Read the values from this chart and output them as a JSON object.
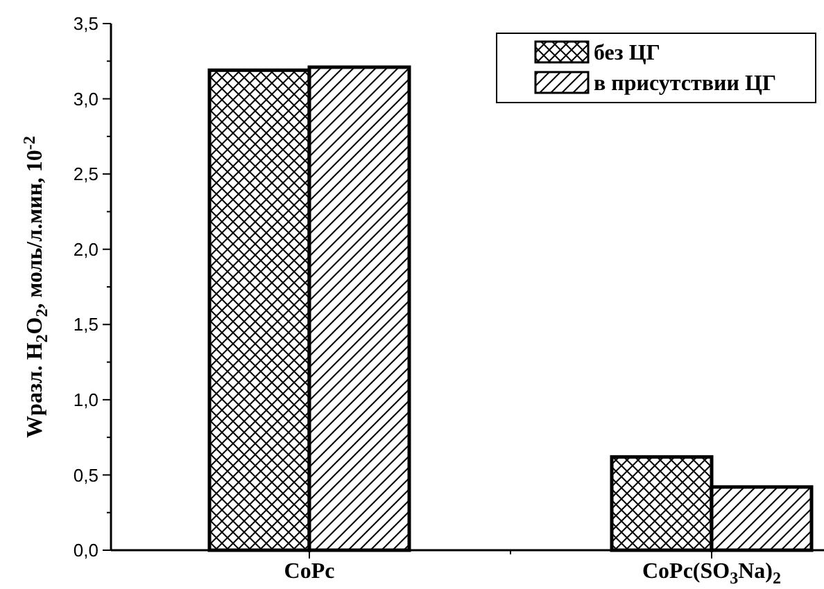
{
  "chart_data": {
    "type": "bar",
    "ylabel": "Wразл. H$_{2}$O$_{2}$, моль/л.мин, 10$^{-2}$",
    "categories": [
      "CoPc",
      "CoPc(SO$_{3}$Na)$_{2}$"
    ],
    "series": [
      {
        "name": "без ЦГ",
        "color": "#000000",
        "values": [
          3.19,
          0.62
        ]
      },
      {
        "name": "в присутствии ЦГ",
        "color": "#000000",
        "values": [
          3.21,
          0.42
        ]
      }
    ],
    "ylim": [
      0,
      3.5
    ],
    "yticks": [
      {
        "value": 0,
        "label": "0,0"
      },
      {
        "value": 0.5,
        "label": "0,5"
      },
      {
        "value": 1,
        "label": "1,0"
      },
      {
        "value": 1.5,
        "label": "1,5"
      },
      {
        "value": 2,
        "label": "2,0"
      },
      {
        "value": 2.5,
        "label": "2,5"
      },
      {
        "value": 3,
        "label": "3,0"
      },
      {
        "value": 3.5,
        "label": "3,5"
      }
    ],
    "grid": false,
    "legend": "top right"
  }
}
